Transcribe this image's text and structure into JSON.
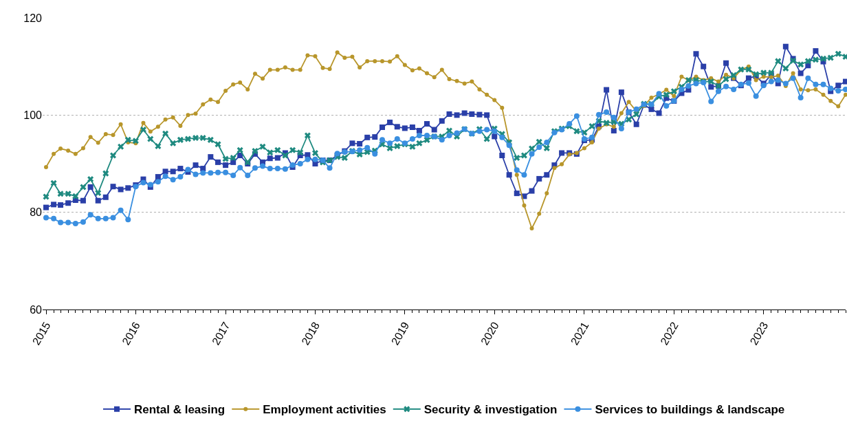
{
  "chart_data": {
    "type": "line",
    "x": [
      "2015-01",
      "2015-02",
      "2015-03",
      "2015-04",
      "2015-05",
      "2015-06",
      "2015-07",
      "2015-08",
      "2015-09",
      "2015-10",
      "2015-11",
      "2015-12",
      "2016-01",
      "2016-02",
      "2016-03",
      "2016-04",
      "2016-05",
      "2016-06",
      "2016-07",
      "2016-08",
      "2016-09",
      "2016-10",
      "2016-11",
      "2016-12",
      "2017-01",
      "2017-02",
      "2017-03",
      "2017-04",
      "2017-05",
      "2017-06",
      "2017-07",
      "2017-08",
      "2017-09",
      "2017-10",
      "2017-11",
      "2017-12",
      "2018-01",
      "2018-02",
      "2018-03",
      "2018-04",
      "2018-05",
      "2018-06",
      "2018-07",
      "2018-08",
      "2018-09",
      "2018-10",
      "2018-11",
      "2018-12",
      "2019-01",
      "2019-02",
      "2019-03",
      "2019-04",
      "2019-05",
      "2019-06",
      "2019-07",
      "2019-08",
      "2019-09",
      "2019-10",
      "2019-11",
      "2019-12",
      "2020-01",
      "2020-02",
      "2020-03",
      "2020-04",
      "2020-05",
      "2020-06",
      "2020-07",
      "2020-08",
      "2020-09",
      "2020-10",
      "2020-11",
      "2020-12",
      "2021-01",
      "2021-02",
      "2021-03",
      "2021-04",
      "2021-05",
      "2021-06",
      "2021-07",
      "2021-08",
      "2021-09",
      "2021-10",
      "2021-11",
      "2021-12",
      "2022-01",
      "2022-02",
      "2022-03",
      "2022-04",
      "2022-05",
      "2022-06",
      "2022-07",
      "2022-08",
      "2022-09",
      "2022-10",
      "2022-11",
      "2022-12",
      "2023-01",
      "2023-02",
      "2023-03",
      "2023-04",
      "2023-05",
      "2023-06",
      "2023-07",
      "2023-08",
      "2023-09",
      "2023-10",
      "2023-11",
      "2023-12"
    ],
    "xlim": [
      "2014-12-18",
      "2023-12-01"
    ],
    "xticks": [
      {
        "value": "2015-01-01",
        "label": "2015"
      },
      {
        "value": "2016-01-01",
        "label": "2016"
      },
      {
        "value": "2017-01-01",
        "label": "2017"
      },
      {
        "value": "2018-01-01",
        "label": "2018"
      },
      {
        "value": "2019-01-01",
        "label": "2019"
      },
      {
        "value": "2020-01-01",
        "label": "2020"
      },
      {
        "value": "2021-01-01",
        "label": "2021"
      },
      {
        "value": "2022-01-01",
        "label": "2022"
      },
      {
        "value": "2023-01-01",
        "label": "2023"
      }
    ],
    "ylim": [
      60,
      120
    ],
    "yticks": [
      60,
      80,
      100,
      120
    ],
    "grid": "y",
    "legend": "bottom",
    "line_style": "solid",
    "series": [
      {
        "name": "Rental & leasing",
        "color": "#2a3fa8",
        "marker": "square",
        "values": [
          81.0,
          81.6,
          81.5,
          81.9,
          82.5,
          82.4,
          85.2,
          82.4,
          83.1,
          85.3,
          84.7,
          85.0,
          85.6,
          86.8,
          85.2,
          87.3,
          88.4,
          88.4,
          89.0,
          88.3,
          89.7,
          89.0,
          91.4,
          90.3,
          89.7,
          90.3,
          91.7,
          90.0,
          92.0,
          90.3,
          91.1,
          91.2,
          92.2,
          89.3,
          91.7,
          91.8,
          90.0,
          90.7,
          90.7,
          91.7,
          92.6,
          94.2,
          94.1,
          95.4,
          95.5,
          97.5,
          98.5,
          97.6,
          97.3,
          97.5,
          96.8,
          98.2,
          97.0,
          98.8,
          100.2,
          100.0,
          100.4,
          100.2,
          100.1,
          100.0,
          95.6,
          91.7,
          87.7,
          83.9,
          83.3,
          84.4,
          86.9,
          87.7,
          89.7,
          92.2,
          92.2,
          92.0,
          94.8,
          94.9,
          97.7,
          105.2,
          96.8,
          104.7,
          100.6,
          98.1,
          102.1,
          101.2,
          100.4,
          103.5,
          102.9,
          104.5,
          105.2,
          112.6,
          110.0,
          105.8,
          106.0,
          110.7,
          107.6,
          106.1,
          107.6,
          108.0,
          106.5,
          108.3,
          106.5,
          114.1,
          111.6,
          108.6,
          110.2,
          113.2,
          111.0,
          104.9,
          106.1,
          106.9
        ]
      },
      {
        "name": "Employment activities",
        "color": "#b8962b",
        "marker": "circle",
        "values": [
          89.3,
          92.0,
          93.1,
          92.7,
          92.0,
          93.2,
          95.5,
          94.3,
          96.1,
          95.9,
          98.1,
          94.4,
          94.2,
          98.4,
          96.6,
          97.6,
          99.1,
          99.5,
          97.8,
          100.0,
          100.3,
          102.2,
          103.2,
          102.7,
          105.0,
          106.3,
          106.7,
          105.3,
          108.5,
          107.5,
          109.3,
          109.3,
          109.8,
          109.3,
          109.3,
          112.3,
          112.1,
          109.7,
          109.5,
          112.9,
          111.8,
          112.0,
          109.8,
          111.1,
          111.1,
          111.1,
          111.0,
          112.1,
          110.3,
          109.2,
          109.6,
          108.6,
          107.8,
          109.3,
          107.4,
          107.0,
          106.5,
          106.9,
          105.3,
          104.2,
          103.1,
          101.5,
          94.6,
          87.7,
          81.4,
          76.7,
          79.7,
          83.9,
          89.1,
          89.9,
          91.9,
          92.2,
          93.2,
          94.4,
          97.2,
          98.1,
          97.6,
          100.4,
          102.7,
          100.8,
          101.9,
          103.6,
          104.3,
          105.2,
          103.9,
          107.9,
          107.2,
          107.9,
          107.2,
          107.6,
          106.9,
          108.3,
          107.6,
          109.3,
          110.0,
          107.2,
          107.9,
          107.8,
          108.1,
          106.0,
          108.6,
          105.3,
          105.1,
          105.3,
          104.2,
          102.9,
          101.8,
          104.2
        ]
      },
      {
        "name": "Security & investigation",
        "color": "#1f8a80",
        "marker": "cross",
        "values": [
          83.2,
          86.0,
          83.8,
          83.8,
          83.3,
          85.2,
          86.8,
          84.0,
          88.0,
          91.7,
          93.5,
          94.9,
          94.7,
          97.0,
          95.1,
          93.6,
          96.2,
          94.2,
          94.9,
          95.1,
          95.3,
          95.3,
          94.9,
          94.0,
          91.0,
          91.2,
          92.8,
          90.3,
          92.6,
          93.5,
          92.3,
          92.8,
          91.7,
          92.8,
          92.3,
          95.8,
          92.2,
          90.3,
          90.7,
          91.4,
          91.2,
          92.6,
          91.9,
          92.4,
          92.7,
          94.0,
          93.2,
          93.6,
          94.0,
          93.5,
          94.2,
          94.9,
          95.6,
          95.6,
          96.8,
          95.6,
          97.1,
          96.2,
          97.1,
          95.1,
          97.2,
          96.1,
          94.4,
          91.2,
          91.7,
          93.1,
          94.5,
          93.2,
          96.7,
          97.2,
          97.7,
          96.7,
          96.4,
          97.7,
          98.8,
          98.4,
          98.6,
          98.2,
          99.1,
          100.2,
          102.3,
          102.3,
          103.8,
          104.2,
          104.9,
          105.8,
          107.2,
          107.2,
          106.9,
          106.9,
          106.0,
          107.4,
          108.2,
          109.4,
          109.4,
          108.4,
          108.7,
          108.7,
          111.1,
          109.6,
          111.2,
          110.4,
          111.1,
          111.4,
          111.6,
          111.8,
          112.6,
          112.0
        ]
      },
      {
        "name": "Services to buildings & landscape",
        "color": "#3a8fe0",
        "marker": "circle",
        "values": [
          78.9,
          78.7,
          77.9,
          77.9,
          77.7,
          78.0,
          79.5,
          78.7,
          78.7,
          78.9,
          80.4,
          78.5,
          85.3,
          86.1,
          85.7,
          86.3,
          87.4,
          86.7,
          87.3,
          88.8,
          87.8,
          88.1,
          88.1,
          88.2,
          88.2,
          87.6,
          89.2,
          87.6,
          89.1,
          89.5,
          89.0,
          89.0,
          88.9,
          89.7,
          90.0,
          90.9,
          90.9,
          90.7,
          89.1,
          92.1,
          92.4,
          92.5,
          92.8,
          93.3,
          92.0,
          94.9,
          94.2,
          95.1,
          94.2,
          95.1,
          95.8,
          95.8,
          95.6,
          94.9,
          95.8,
          96.3,
          97.1,
          96.2,
          96.7,
          97.0,
          96.7,
          95.4,
          93.8,
          88.7,
          87.7,
          92.0,
          93.4,
          94.4,
          96.4,
          97.0,
          98.2,
          99.8,
          95.1,
          95.4,
          100.1,
          100.6,
          99.5,
          97.2,
          100.6,
          101.2,
          102.2,
          102.2,
          104.4,
          101.9,
          102.9,
          105.3,
          106.0,
          106.5,
          106.7,
          102.8,
          104.9,
          105.9,
          105.3,
          106.3,
          106.6,
          103.9,
          106.1,
          106.9,
          107.2,
          106.5,
          107.6,
          103.6,
          107.6,
          106.3,
          106.3,
          105.5,
          105.0,
          105.3
        ]
      }
    ]
  }
}
